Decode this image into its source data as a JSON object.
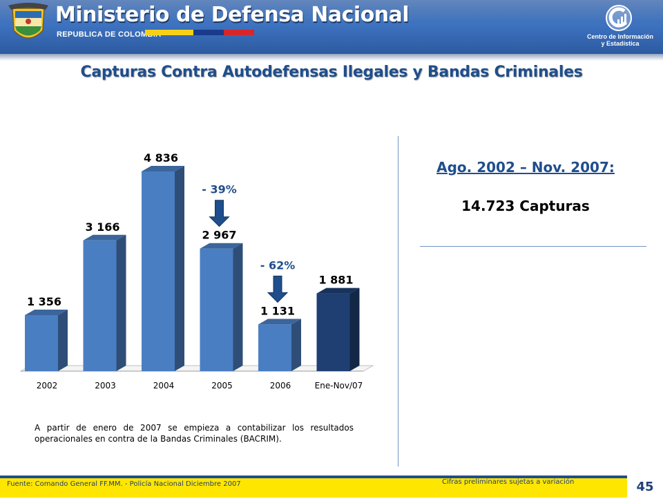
{
  "header": {
    "ministry_title": "Ministerio de Defensa Nacional",
    "republic": "REPUBLICA DE COLOMBIA",
    "center_line1": "Centro de Información",
    "center_line2": "y Estadística",
    "flag_colors": [
      "#f7d117",
      "#1b3a8c",
      "#d6262b"
    ],
    "bar_color": "#3a6fbe"
  },
  "slide": {
    "title": "Capturas Contra Autodefensas Ilegales y Bandas Criminales"
  },
  "summary": {
    "period": "Ago. 2002 – Nov. 2007:",
    "total": "14.723 Capturas"
  },
  "note": "A partir de enero de 2007 se empieza a contabilizar los resultados operacionales en contra de la Bandas Criminales (BACRIM).",
  "footer": {
    "source": "Fuente:  Comando General FF.MM. - Policía Nacional  Diciembre 2007",
    "preliminary": "Cifras preliminares sujetas a variación",
    "page_number": "45"
  },
  "chart_data": {
    "type": "bar",
    "title": "",
    "xlabel": "",
    "ylabel": "",
    "categories": [
      "2002",
      "2003",
      "2004",
      "2005",
      "2006",
      "Ene-Nov/07"
    ],
    "values": [
      1356,
      3166,
      4836,
      2967,
      1131,
      1881
    ],
    "value_labels": [
      "1 356",
      "3 166",
      "4 836",
      "2 967",
      "1 131",
      "1 881"
    ],
    "bar_colors": [
      "#4a7ec2",
      "#4a7ec2",
      "#4a7ec2",
      "#4a7ec2",
      "#4a7ec2",
      "#1f3f73"
    ],
    "ylim": [
      0,
      5000
    ],
    "grid": false,
    "legend": "none",
    "annotations": [
      {
        "text": "- 39%",
        "category": "2005",
        "arrow": "down"
      },
      {
        "text": "- 62%",
        "category": "2006",
        "arrow": "down"
      }
    ],
    "annotation_color": "#1f4e8c"
  }
}
